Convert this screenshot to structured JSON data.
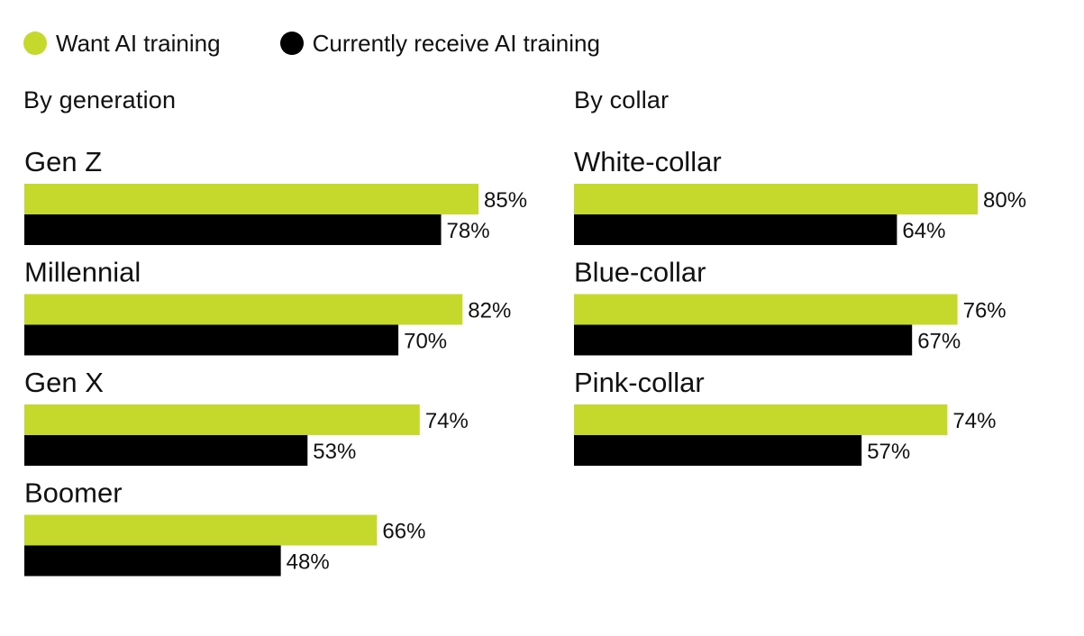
{
  "legend": {
    "want_label": "Want AI training",
    "receive_label": "Currently receive AI training"
  },
  "colors": {
    "want": "#c5d92d",
    "receive": "#000000",
    "text": "#111111"
  },
  "chart_data": [
    {
      "type": "bar",
      "orientation": "horizontal",
      "title": "By generation",
      "categories": [
        "Gen Z",
        "Millennial",
        "Gen X",
        "Boomer"
      ],
      "series": [
        {
          "name": "Want AI training",
          "values": [
            85,
            82,
            74,
            66
          ]
        },
        {
          "name": "Currently receive AI training",
          "values": [
            78,
            70,
            53,
            48
          ]
        }
      ],
      "value_suffix": "%",
      "xlim": [
        0,
        100
      ],
      "grid": false,
      "legend": "top-left"
    },
    {
      "type": "bar",
      "orientation": "horizontal",
      "title": "By collar",
      "categories": [
        "White-collar",
        "Blue-collar",
        "Pink-collar"
      ],
      "series": [
        {
          "name": "Want AI training",
          "values": [
            80,
            76,
            74
          ]
        },
        {
          "name": "Currently receive AI training",
          "values": [
            64,
            67,
            57
          ]
        }
      ],
      "value_suffix": "%",
      "xlim": [
        0,
        100
      ],
      "grid": false,
      "legend": "top-left"
    }
  ]
}
